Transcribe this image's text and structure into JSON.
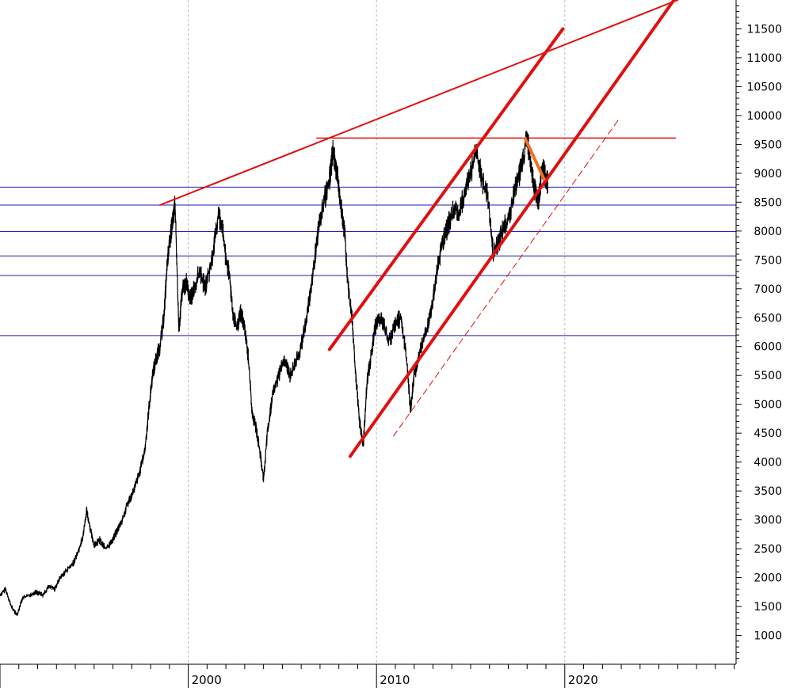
{
  "chart_data": {
    "type": "line",
    "title": "",
    "xlabel": "",
    "ylabel": "",
    "x_range": [
      1990.0,
      2029.1
    ],
    "y_range": [
      500,
      12000
    ],
    "y_ticks": [
      1000,
      1500,
      2000,
      2500,
      3000,
      3500,
      4000,
      4500,
      5000,
      5500,
      6000,
      6500,
      7000,
      7500,
      8000,
      8500,
      9000,
      9500,
      10000,
      10500,
      11000,
      11500
    ],
    "y_tick_labels": [
      "1000",
      "1500",
      "2000",
      "2500",
      "3000",
      "3500",
      "4000",
      "4500",
      "5000",
      "5500",
      "6000",
      "6500",
      "7000",
      "7500",
      "8000",
      "8500",
      "9000",
      "9500",
      "10000",
      "10500",
      "11000",
      "11500"
    ],
    "x_ticks": [
      2000,
      2010,
      2020
    ],
    "x_tick_labels": [
      "2000",
      "2010",
      "2020"
    ],
    "x_gridlines": [
      2000,
      2010,
      2020
    ],
    "grid": "vertical dashed at decade ticks",
    "legend": "none",
    "series": [
      {
        "color": "#000000",
        "values": [
          [
            1990.0,
            1700
          ],
          [
            1990.3,
            1800
          ],
          [
            1990.6,
            1500
          ],
          [
            1990.9,
            1350
          ],
          [
            1991.2,
            1650
          ],
          [
            1991.6,
            1700
          ],
          [
            1991.9,
            1750
          ],
          [
            1992.3,
            1700
          ],
          [
            1992.6,
            1850
          ],
          [
            1992.9,
            1800
          ],
          [
            1993.2,
            2000
          ],
          [
            1993.6,
            2150
          ],
          [
            1993.9,
            2250
          ],
          [
            1994.2,
            2500
          ],
          [
            1994.4,
            2700
          ],
          [
            1994.6,
            3150
          ],
          [
            1994.8,
            2850
          ],
          [
            1995.0,
            2550
          ],
          [
            1995.3,
            2650
          ],
          [
            1995.6,
            2500
          ],
          [
            1995.9,
            2600
          ],
          [
            1996.2,
            2800
          ],
          [
            1996.5,
            3000
          ],
          [
            1996.8,
            3300
          ],
          [
            1997.1,
            3500
          ],
          [
            1997.4,
            3800
          ],
          [
            1997.7,
            4200
          ],
          [
            1997.9,
            4900
          ],
          [
            1998.1,
            5500
          ],
          [
            1998.3,
            5800
          ],
          [
            1998.5,
            6000
          ],
          [
            1998.7,
            6500
          ],
          [
            1998.9,
            7500
          ],
          [
            1999.1,
            8000
          ],
          [
            1999.3,
            8450
          ],
          [
            1999.5,
            6300
          ],
          [
            1999.7,
            7000
          ],
          [
            1999.9,
            7100
          ],
          [
            2000.1,
            6800
          ],
          [
            2000.3,
            7000
          ],
          [
            2000.6,
            7300
          ],
          [
            2000.9,
            7000
          ],
          [
            2001.2,
            7400
          ],
          [
            2001.4,
            7800
          ],
          [
            2001.6,
            8300
          ],
          [
            2001.8,
            8100
          ],
          [
            2002.0,
            7500
          ],
          [
            2002.2,
            7200
          ],
          [
            2002.4,
            6500
          ],
          [
            2002.6,
            6300
          ],
          [
            2002.8,
            6600
          ],
          [
            2003.0,
            6300
          ],
          [
            2003.2,
            5800
          ],
          [
            2003.4,
            4800
          ],
          [
            2003.6,
            4600
          ],
          [
            2003.8,
            4200
          ],
          [
            2004.0,
            3700
          ],
          [
            2004.2,
            4500
          ],
          [
            2004.5,
            5200
          ],
          [
            2004.8,
            5500
          ],
          [
            2005.1,
            5800
          ],
          [
            2005.4,
            5500
          ],
          [
            2005.7,
            5700
          ],
          [
            2006.0,
            6000
          ],
          [
            2006.3,
            6500
          ],
          [
            2006.6,
            7200
          ],
          [
            2006.9,
            8000
          ],
          [
            2007.2,
            8500
          ],
          [
            2007.5,
            8900
          ],
          [
            2007.7,
            9400
          ],
          [
            2007.9,
            9000
          ],
          [
            2008.1,
            8500
          ],
          [
            2008.3,
            8000
          ],
          [
            2008.5,
            7000
          ],
          [
            2008.7,
            6500
          ],
          [
            2008.9,
            5500
          ],
          [
            2009.1,
            4700
          ],
          [
            2009.3,
            4300
          ],
          [
            2009.5,
            5400
          ],
          [
            2009.7,
            5800
          ],
          [
            2009.9,
            6300
          ],
          [
            2010.1,
            6500
          ],
          [
            2010.4,
            6400
          ],
          [
            2010.7,
            6100
          ],
          [
            2011.0,
            6400
          ],
          [
            2011.3,
            6500
          ],
          [
            2011.6,
            5800
          ],
          [
            2011.8,
            4900
          ],
          [
            2012.0,
            5500
          ],
          [
            2012.3,
            5900
          ],
          [
            2012.6,
            6200
          ],
          [
            2012.9,
            6600
          ],
          [
            2013.2,
            7300
          ],
          [
            2013.5,
            7800
          ],
          [
            2013.8,
            8100
          ],
          [
            2014.1,
            8400
          ],
          [
            2014.4,
            8300
          ],
          [
            2014.7,
            8700
          ],
          [
            2015.0,
            9000
          ],
          [
            2015.3,
            9400
          ],
          [
            2015.6,
            8900
          ],
          [
            2015.9,
            8600
          ],
          [
            2016.2,
            7600
          ],
          [
            2016.5,
            7800
          ],
          [
            2016.8,
            8100
          ],
          [
            2017.1,
            8300
          ],
          [
            2017.4,
            8800
          ],
          [
            2017.7,
            9100
          ],
          [
            2018.0,
            9600
          ],
          [
            2018.2,
            9200
          ],
          [
            2018.4,
            8700
          ],
          [
            2018.6,
            8500
          ],
          [
            2018.8,
            9100
          ],
          [
            2019.0,
            8900
          ],
          [
            2019.1,
            8850
          ]
        ]
      }
    ],
    "horizontal_lines": [
      {
        "y": 8760,
        "color": "#1f1fb4"
      },
      {
        "y": 8450,
        "color": "#1f1fb4"
      },
      {
        "y": 7990,
        "color": "#1f1fb4"
      },
      {
        "y": 7570,
        "color": "#1f1fb4"
      },
      {
        "y": 7230,
        "color": "#1f1fb4"
      },
      {
        "y": 6190,
        "color": "#1f1fb4"
      },
      {
        "y": 9610,
        "color": "#e01010",
        "x_start": 2006.8,
        "x_end": 2025.9
      }
    ],
    "trendlines": [
      {
        "x1": 1998.5,
        "y1": 8450,
        "x2": 2026.0,
        "y2": 12000,
        "color": "#e01010",
        "weight": "thin"
      },
      {
        "x1": 2007.5,
        "y1": 5950,
        "x2": 2019.9,
        "y2": 11500,
        "color": "#e01010",
        "weight": "thick"
      },
      {
        "x1": 2008.6,
        "y1": 4100,
        "x2": 2025.8,
        "y2": 12000,
        "color": "#e01010",
        "weight": "thick"
      },
      {
        "x1": 2010.9,
        "y1": 4450,
        "x2": 2022.9,
        "y2": 9950,
        "color": "#e01010",
        "weight": "dashed"
      },
      {
        "x1": 2017.9,
        "y1": 9600,
        "x2": 2018.9,
        "y2": 8900,
        "color": "#f07020",
        "weight": "thick"
      }
    ],
    "colors": {
      "price": "#000000",
      "support_resistance": "#1f1fb4",
      "trend": "#e01010",
      "recent": "#f07020",
      "grid": "#b8b8b8"
    }
  }
}
